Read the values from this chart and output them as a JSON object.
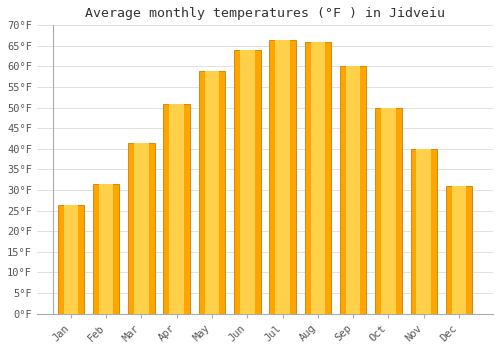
{
  "title": "Average monthly temperatures (°F ) in Jidveiu",
  "months": [
    "Jan",
    "Feb",
    "Mar",
    "Apr",
    "May",
    "Jun",
    "Jul",
    "Aug",
    "Sep",
    "Oct",
    "Nov",
    "Dec"
  ],
  "values": [
    26.5,
    31.5,
    41.5,
    51.0,
    59.0,
    64.0,
    66.5,
    66.0,
    60.0,
    50.0,
    40.0,
    31.0
  ],
  "bar_color_main": "#FFA500",
  "bar_color_light": "#FFD04A",
  "bar_edge_color": "#CC8000",
  "background_color": "#ffffff",
  "grid_color": "#e0e0e0",
  "ylim": [
    0,
    70
  ],
  "yticks": [
    0,
    5,
    10,
    15,
    20,
    25,
    30,
    35,
    40,
    45,
    50,
    55,
    60,
    65,
    70
  ],
  "ytick_labels": [
    "0°F",
    "5°F",
    "10°F",
    "15°F",
    "20°F",
    "25°F",
    "30°F",
    "35°F",
    "40°F",
    "45°F",
    "50°F",
    "55°F",
    "60°F",
    "65°F",
    "70°F"
  ],
  "title_fontsize": 9.5,
  "tick_fontsize": 7.5,
  "bar_width": 0.75,
  "figsize": [
    5.0,
    3.5
  ],
  "dpi": 100
}
